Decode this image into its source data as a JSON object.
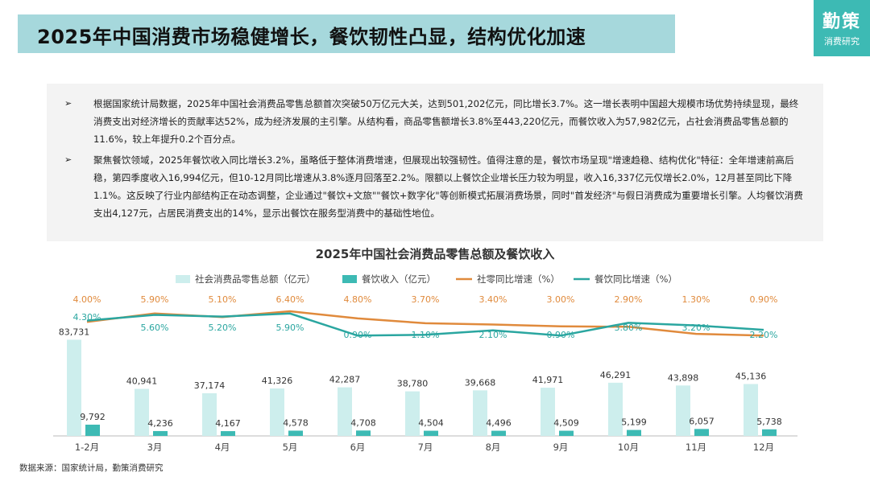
{
  "header": {
    "title": "2025年中国消费市场稳健增长，餐饮韧性凸显，结构优化加速",
    "logo_main": "勤策",
    "logo_sub": "消费研究"
  },
  "summary": {
    "bullet": "➢",
    "p1": "根据国家统计局数据，2025年中国社会消费品零售总额首次突破50万亿元大关，达到501,202亿元，同比增长3.7%。这一增长表明中国超大规模市场优势持续显现，最终消费支出对经济增长的贡献率达52%，成为经济发展的主引擎。从结构看，商品零售额增长3.8%至443,220亿元，而餐饮收入为57,982亿元，占社会消费品零售总额的11.6%，较上年提升0.2个百分点。",
    "p2": "聚焦餐饮领域，2025年餐饮收入同比增长3.2%，虽略低于整体消费增速，但展现出较强韧性。值得注意的是，餐饮市场呈现\"增速趋稳、结构优化\"特征：全年增速前高后稳，第四季度收入16,994亿元，但10-12月同比增速从3.8%逐月回落至2.2%。限额以上餐饮企业增长压力较为明显，收入16,337亿元仅增长2.0%，12月甚至同比下降1.1%。这反映了行业内部结构正在动态调整，企业通过\"餐饮+文旅\"\"餐饮+数字化\"等创新模式拓展消费场景，同时\"首发经济\"与假日消费成为重要增长引擎。人均餐饮消费支出4,127元，占居民消费支出的14%，显示出餐饮在服务型消费中的基础性地位。"
  },
  "chart_data": {
    "type": "bar",
    "title": "2025年中国社会消费品零售总额及餐饮收入",
    "categories": [
      "1-2月",
      "3月",
      "4月",
      "5月",
      "6月",
      "7月",
      "8月",
      "9月",
      "10月",
      "11月",
      "12月"
    ],
    "series": [
      {
        "name": "社会消费品零售总额（亿元）",
        "type": "bar",
        "color": "#cdeeed",
        "values": [
          83731,
          40941,
          37174,
          41326,
          42287,
          38780,
          39668,
          41971,
          46291,
          43898,
          45136
        ],
        "labels": [
          "83,731",
          "40,941",
          "37,174",
          "41,326",
          "42,287",
          "38,780",
          "39,668",
          "41,971",
          "46,291",
          "43,898",
          "45,136"
        ]
      },
      {
        "name": "餐饮收入（亿元）",
        "type": "bar",
        "color": "#3dbab4",
        "values": [
          9792,
          4236,
          4167,
          4578,
          4708,
          4504,
          4496,
          4509,
          5199,
          6057,
          5738
        ],
        "labels": [
          "9,792",
          "4,236",
          "4,167",
          "4,578",
          "4,708",
          "4,504",
          "4,496",
          "4,509",
          "5,199",
          "6,057",
          "5,738"
        ]
      },
      {
        "name": "社零同比增速（%）",
        "type": "line",
        "color": "#e08a3c",
        "values": [
          4.0,
          5.9,
          5.1,
          6.4,
          4.8,
          3.7,
          3.4,
          3.0,
          2.9,
          1.3,
          0.9
        ],
        "labels": [
          "4.00%",
          "5.90%",
          "5.10%",
          "6.40%",
          "4.80%",
          "3.70%",
          "3.40%",
          "3.00%",
          "2.90%",
          "1.30%",
          "0.90%"
        ]
      },
      {
        "name": "餐饮同比增速（%）",
        "type": "line",
        "color": "#2aa6a0",
        "values": [
          4.3,
          5.6,
          5.2,
          5.9,
          0.9,
          1.1,
          2.1,
          0.9,
          3.8,
          3.2,
          2.2
        ],
        "labels": [
          "4.30%",
          "5.60%",
          "5.20%",
          "5.90%",
          "0.90%",
          "1.10%",
          "2.10%",
          "0.90%",
          "3.80%",
          "3.20%",
          "2.20%"
        ]
      }
    ],
    "legend_position": "top",
    "grid": false
  },
  "source": "数据来源：国家统计局，勤策消费研究"
}
